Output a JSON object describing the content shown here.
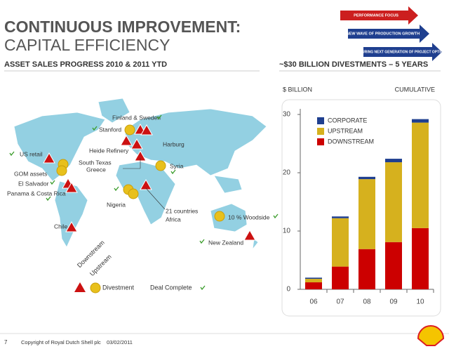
{
  "header": {
    "title": "CONTINUOUS IMPROVEMENT:",
    "subtitle": "CAPITAL EFFICIENCY",
    "section": "ASSET SALES PROGRESS 2010 & 2011 YTD",
    "arrows": [
      "PERFORMANCE FOCUS",
      "NEW WAVE OF PRODUCTION GROWTH",
      "MATURING NEXT GENERATION OF PROJECT OPTIONS"
    ]
  },
  "map": {
    "labels": [
      "Finland & Sweden",
      "Stanford",
      "Heide Refinery",
      "Harburg",
      "US retail",
      "South Texas",
      "Greece",
      "Syria",
      "GOM assets",
      "El Salvador",
      "Panama & Costa Rica",
      "Nigeria",
      "21 countries",
      "Africa",
      "10 % Woodside",
      "Chile",
      "New Zealand"
    ],
    "legend": {
      "downstream": "Downstream",
      "upstream": "Upstream",
      "divestment": "Divestment",
      "complete": "Deal Complete"
    }
  },
  "chart_data": {
    "type": "bar",
    "stacked": true,
    "title": "~$30 BILLION DIVESTMENTS – 5 YEARS",
    "y_label": "$ BILLION",
    "note": "CUMULATIVE",
    "categories": [
      "06",
      "07",
      "08",
      "09",
      "10"
    ],
    "series": [
      {
        "name": "DOWNSTREAM",
        "color": "#cc0000",
        "values": [
          1.2,
          3.9,
          6.9,
          8.1,
          10.5
        ]
      },
      {
        "name": "UPSTREAM",
        "color": "#d6b11e",
        "values": [
          0.6,
          8.3,
          12.0,
          13.7,
          18.1
        ]
      },
      {
        "name": "CORPORATE",
        "color": "#1f3f8f",
        "values": [
          0.2,
          0.3,
          0.4,
          0.6,
          0.6
        ]
      }
    ],
    "ylim": [
      0,
      30
    ],
    "yticks": [
      0,
      10,
      20,
      30
    ],
    "grid": false
  },
  "footer": {
    "page": "7",
    "copyright": "Copyright of Royal Dutch Shell plc",
    "date": "03/02/2011"
  }
}
